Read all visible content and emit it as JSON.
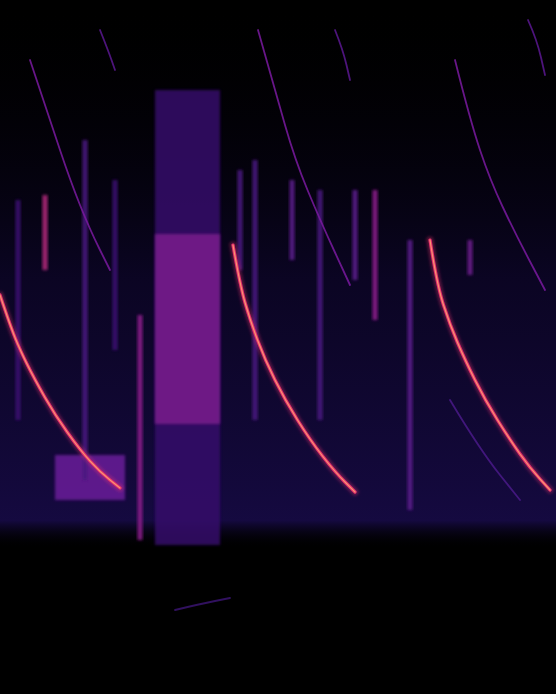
{
  "chart_data": {
    "type": "spectrogram",
    "xlim": [
      0,
      5.56
    ],
    "ylim": [
      0,
      69.4
    ],
    "tick_labels": false,
    "grid": false,
    "bands": [
      {
        "x": [
          1.55,
          2.2
        ],
        "y": [
          14.9,
          60.4
        ],
        "color": "#35106a"
      },
      {
        "x": [
          1.55,
          2.2
        ],
        "y": [
          27.0,
          46.0
        ],
        "color": "#7a1a8c"
      },
      {
        "x": [
          0.55,
          1.25
        ],
        "y": [
          19.4,
          23.9
        ],
        "color": "#6a1a9a"
      }
    ],
    "clicks": {
      "x": [
        0.18,
        0.45,
        0.85,
        1.15,
        1.4,
        2.4,
        2.55,
        2.92,
        3.2,
        3.55,
        3.75,
        4.1,
        4.7
      ],
      "y_low": [
        27.4,
        42.4,
        21.4,
        34.4,
        15.4,
        42.4,
        27.4,
        43.4,
        27.4,
        41.4,
        37.4,
        18.4,
        41.9
      ],
      "y_high": [
        49.4,
        49.9,
        55.4,
        51.4,
        37.9,
        52.4,
        53.4,
        51.4,
        50.4,
        50.4,
        50.4,
        45.4,
        45.4
      ],
      "colors": [
        "#3a1070",
        "#b0287a",
        "#4a1880",
        "#3a1070",
        "#8a1a8a",
        "#4a1880",
        "#4a1880",
        "#5a1a8a",
        "#4a1880",
        "#5a1a8a",
        "#8a1a8a",
        "#5a1a8a",
        "#6a1a8a"
      ]
    },
    "series": [
      {
        "x": [
          0,
          0.1,
          0.2,
          0.35,
          0.55,
          0.8,
          1.0,
          1.2
        ],
        "values": [
          39.9,
          36.9,
          34.4,
          31.4,
          27.9,
          24.4,
          22.2,
          20.6
        ],
        "color": "#e8306e",
        "line_style": "thick"
      },
      {
        "x": [
          2.33,
          2.4,
          2.5,
          2.65,
          2.85,
          3.1,
          3.35,
          3.55
        ],
        "values": [
          44.9,
          40.9,
          37.4,
          33.4,
          29.4,
          25.4,
          22.2,
          20.2
        ],
        "color": "#e8306e",
        "line_style": "thick"
      },
      {
        "x": [
          4.3,
          4.37,
          4.5,
          4.65,
          4.85,
          5.1,
          5.3,
          5.5
        ],
        "values": [
          45.4,
          40.9,
          36.9,
          33.4,
          29.4,
          25.4,
          22.6,
          20.4
        ],
        "color": "#e8306e",
        "line_style": "thick"
      },
      {
        "x": [
          0.3,
          0.5,
          0.7,
          0.9,
          1.1
        ],
        "values": [
          63.4,
          57.4,
          51.4,
          46.4,
          42.4
        ],
        "color": "#7a1aa0",
        "line_style": "thin"
      },
      {
        "x": [
          2.58,
          2.75,
          2.95,
          3.2,
          3.5
        ],
        "values": [
          66.4,
          60.4,
          53.4,
          47.4,
          40.9
        ],
        "color": "#7a1aa0",
        "line_style": "thin"
      },
      {
        "x": [
          4.55,
          4.7,
          4.9,
          5.15,
          5.45
        ],
        "values": [
          63.4,
          57.4,
          51.4,
          46.1,
          40.4
        ],
        "color": "#7a1aa0",
        "line_style": "thin"
      },
      {
        "x": [
          1.0,
          1.08,
          1.15
        ],
        "values": [
          66.4,
          64.4,
          62.4
        ],
        "color": "#5a1890",
        "line_style": "thin"
      },
      {
        "x": [
          3.35,
          3.43,
          3.5
        ],
        "values": [
          66.4,
          64.4,
          61.4
        ],
        "color": "#5a1890",
        "line_style": "thin"
      },
      {
        "x": [
          5.28,
          5.37,
          5.45
        ],
        "values": [
          67.4,
          65.4,
          61.9
        ],
        "color": "#5a1890",
        "line_style": "thin"
      },
      {
        "x": [
          4.5,
          4.8,
          5.2
        ],
        "values": [
          29.4,
          24.4,
          19.4
        ],
        "color": "#4a1a88",
        "line_style": "thin"
      },
      {
        "x": [
          1.75,
          2.0,
          2.3
        ],
        "values": [
          8.4,
          9.0,
          9.6
        ],
        "color": "#3a1470",
        "line_style": "thin"
      }
    ]
  }
}
